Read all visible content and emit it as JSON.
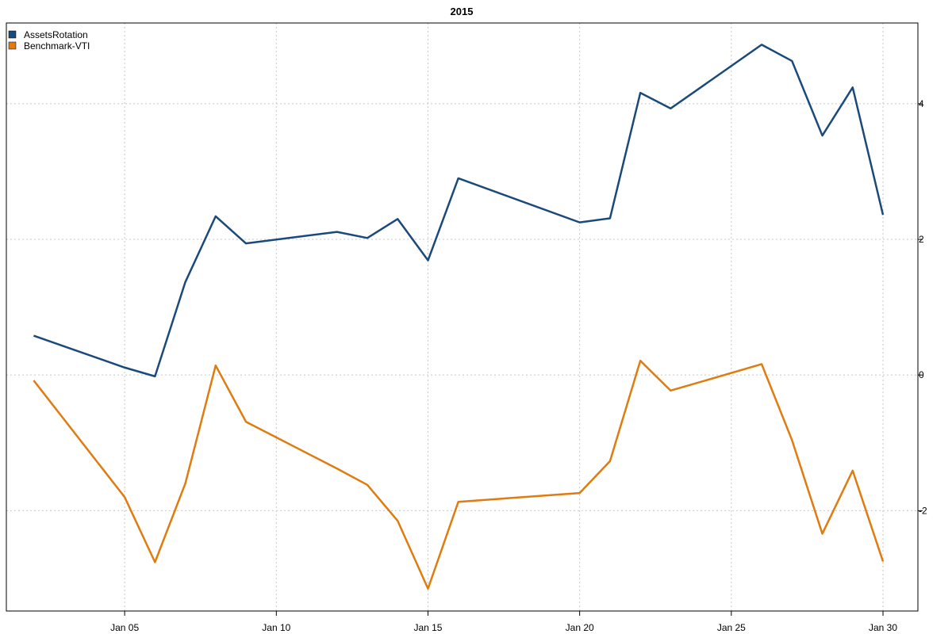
{
  "chart_data": {
    "type": "line",
    "title": "2015",
    "x": [
      2,
      5,
      6,
      7,
      8,
      9,
      12,
      13,
      14,
      15,
      16,
      20,
      21,
      22,
      23,
      26,
      27,
      28,
      29,
      30
    ],
    "series": [
      {
        "name": "AssetsRotation",
        "color": "#1a4a7a",
        "values": [
          0.58,
          0.11,
          -0.02,
          1.37,
          2.34,
          1.94,
          2.11,
          2.02,
          2.3,
          1.69,
          2.9,
          2.25,
          2.31,
          4.16,
          3.93,
          4.87,
          4.63,
          3.53,
          4.24,
          2.36
        ]
      },
      {
        "name": "Benchmark-VTI",
        "color": "#e07b10",
        "values": [
          -0.08,
          -1.8,
          -2.76,
          -1.6,
          0.14,
          -0.69,
          -1.38,
          -1.62,
          -2.15,
          -3.15,
          -1.87,
          -1.74,
          -1.27,
          0.21,
          -0.23,
          0.16,
          -0.96,
          -2.34,
          -1.41,
          -2.75
        ]
      }
    ],
    "xlim": [
      1.1,
      31.15
    ],
    "xticks": [
      {
        "value": 5,
        "label": "Jan 05"
      },
      {
        "value": 10,
        "label": "Jan 10"
      },
      {
        "value": 15,
        "label": "Jan 15"
      },
      {
        "value": 20,
        "label": "Jan 20"
      },
      {
        "value": 25,
        "label": "Jan 25"
      },
      {
        "value": 30,
        "label": "Jan 30"
      }
    ],
    "ylim": [
      -3.48,
      5.19
    ],
    "yticks": [
      -2,
      0,
      2,
      4
    ],
    "grid": true,
    "legend": "top-left"
  }
}
